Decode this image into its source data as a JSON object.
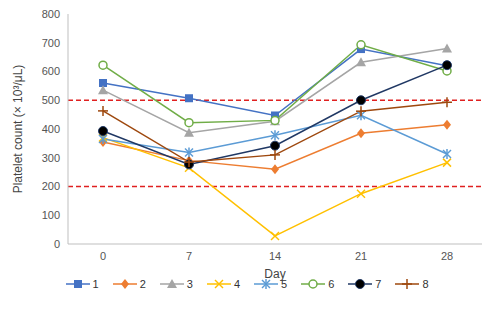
{
  "chart_data": {
    "type": "line",
    "x_label": "Day",
    "y_label": "Platelet count (× 10³/μL)",
    "categories": [
      "0",
      "7",
      "14",
      "21",
      "28"
    ],
    "ylim": [
      0,
      800
    ],
    "yticks": [
      0,
      100,
      200,
      300,
      400,
      500,
      600,
      700,
      800
    ],
    "grid": false,
    "legend": "bottom",
    "reference_lines": [
      {
        "value": 200,
        "color": "#e02020",
        "line_style": "dashed"
      },
      {
        "value": 500,
        "color": "#e02020",
        "line_style": "dashed"
      }
    ],
    "series": [
      {
        "name": "1",
        "color": "#4472c4",
        "marker": "square",
        "values": [
          560,
          507,
          447,
          678,
          620
        ]
      },
      {
        "name": "2",
        "color": "#ed7d31",
        "marker": "diamond",
        "values": [
          355,
          290,
          260,
          385,
          415
        ]
      },
      {
        "name": "3",
        "color": "#a5a5a5",
        "marker": "triangle",
        "values": [
          535,
          387,
          427,
          632,
          680
        ]
      },
      {
        "name": "4",
        "color": "#ffc000",
        "marker": "x",
        "values": [
          370,
          265,
          28,
          175,
          283
        ]
      },
      {
        "name": "5",
        "color": "#5b9bd5",
        "marker": "star",
        "values": [
          365,
          318,
          378,
          448,
          313
        ]
      },
      {
        "name": "6",
        "color": "#70ad47",
        "marker": "circle_open",
        "values": [
          622,
          422,
          430,
          693,
          602
        ]
      },
      {
        "name": "7",
        "color": "#203864",
        "marker": "circle",
        "values": [
          393,
          277,
          342,
          500,
          622
        ]
      },
      {
        "name": "8",
        "color": "#9e480e",
        "marker": "plus",
        "values": [
          463,
          285,
          310,
          462,
          493
        ]
      }
    ]
  }
}
